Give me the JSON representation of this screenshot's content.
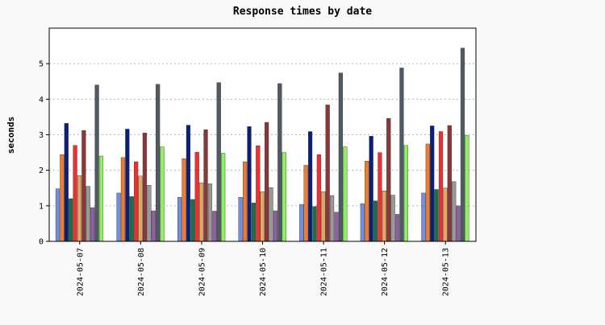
{
  "chart_data": {
    "type": "bar",
    "title": "Response times by date",
    "xlabel": "",
    "ylabel": "seconds",
    "ylim": [
      0,
      6
    ],
    "yticks": [
      0,
      1,
      2,
      3,
      4,
      5
    ],
    "grid": true,
    "legend": "none",
    "categories": [
      "2024-05-07",
      "2024-05-08",
      "2024-05-09",
      "2024-05-10",
      "2024-05-11",
      "2024-05-12",
      "2024-05-13"
    ],
    "series": [
      {
        "color": "#6f8fe0",
        "values": [
          1.48,
          1.36,
          1.24,
          1.24,
          1.04,
          1.06,
          1.36
        ]
      },
      {
        "color": "#f07a30",
        "values": [
          2.44,
          2.36,
          2.33,
          2.24,
          2.14,
          2.26,
          2.74
        ]
      },
      {
        "color": "#0a1f78",
        "values": [
          3.32,
          3.16,
          3.27,
          3.23,
          3.09,
          2.96,
          3.25
        ]
      },
      {
        "color": "#1d6e4a",
        "values": [
          1.2,
          1.26,
          1.18,
          1.08,
          0.98,
          1.14,
          1.46
        ]
      },
      {
        "color": "#f03030",
        "values": [
          2.7,
          2.24,
          2.51,
          2.69,
          2.44,
          2.5,
          3.09
        ]
      },
      {
        "color": "#e0a860",
        "values": [
          1.85,
          1.84,
          1.65,
          1.4,
          1.4,
          1.42,
          1.5
        ]
      },
      {
        "color": "#883838",
        "values": [
          3.12,
          3.05,
          3.14,
          3.35,
          3.84,
          3.46,
          3.26
        ]
      },
      {
        "color": "#999999",
        "values": [
          1.55,
          1.58,
          1.62,
          1.51,
          1.29,
          1.3,
          1.68
        ]
      },
      {
        "color": "#8e60a0",
        "values": [
          0.95,
          0.86,
          0.85,
          0.86,
          0.82,
          0.76,
          1.0
        ]
      },
      {
        "color": "#505a64",
        "values": [
          4.4,
          4.42,
          4.47,
          4.44,
          4.74,
          4.88,
          5.44
        ]
      },
      {
        "color": "#8ef060",
        "values": [
          2.4,
          2.66,
          2.48,
          2.5,
          2.66,
          2.7,
          2.98
        ]
      }
    ]
  }
}
